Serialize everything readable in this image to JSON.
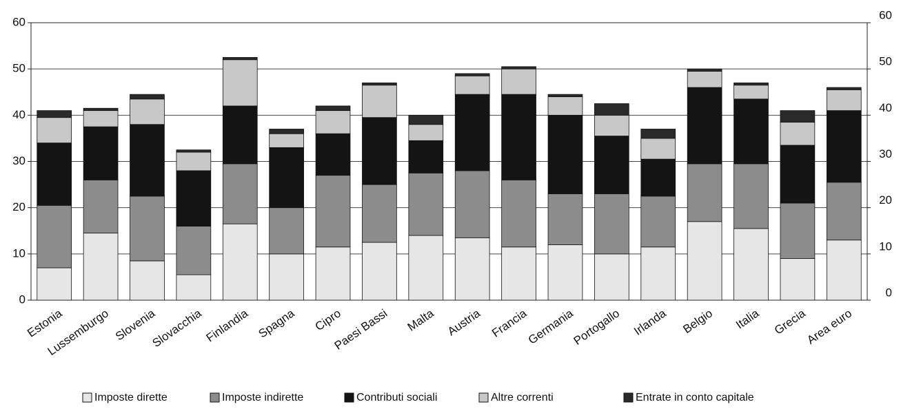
{
  "chart_data": {
    "type": "stacked-bar",
    "categories": [
      "Estonia",
      "Lussemburgo",
      "Slovenia",
      "Slovacchia",
      "Finlandia",
      "Spagna",
      "Cipro",
      "Paesi Bassi",
      "Malta",
      "Austria",
      "Francia",
      "Germania",
      "Portogallo",
      "Irlanda",
      "Belgio",
      "Italia",
      "Grecia",
      "Area euro"
    ],
    "series": [
      {
        "name": "Imposte dirette",
        "color": "#e6e6e6",
        "values": [
          7,
          14.5,
          8.5,
          5.5,
          16.5,
          10,
          11.5,
          12.5,
          14,
          13.5,
          11.5,
          12,
          10,
          11.5,
          17,
          15.5,
          9,
          13
        ]
      },
      {
        "name": "Imposte indirette",
        "color": "#8c8c8c",
        "values": [
          13.5,
          11.5,
          14,
          10.5,
          13,
          10,
          15.5,
          12.5,
          13.5,
          14.5,
          14.5,
          11,
          13,
          11,
          12.5,
          14,
          12,
          12.5
        ]
      },
      {
        "name": "Contributi sociali",
        "color": "#141414",
        "values": [
          13.5,
          11.5,
          15.5,
          12,
          12.5,
          13,
          9,
          14.5,
          7,
          16.5,
          18.5,
          17,
          12.5,
          8,
          16.5,
          14,
          12.5,
          15.5
        ]
      },
      {
        "name": "Altre correnti",
        "color": "#c8c8c8",
        "values": [
          5.5,
          3.5,
          5.5,
          4,
          10,
          3,
          5,
          7,
          3.5,
          4,
          5.5,
          4,
          4.5,
          4.5,
          3.5,
          3,
          5,
          4.5
        ]
      },
      {
        "name": "Entrate in conto capitale",
        "color": "#2a2a2a",
        "values": [
          1.5,
          0.5,
          1,
          0.5,
          0.5,
          1,
          1,
          0.5,
          2,
          0.5,
          0.5,
          0.5,
          2.5,
          2,
          0.5,
          0.5,
          2.5,
          0.5
        ]
      }
    ],
    "ylim": [
      0,
      60
    ],
    "yticks": [
      0,
      10,
      20,
      30,
      40,
      50,
      60
    ],
    "y2lim": [
      0,
      60
    ],
    "y2ticks": [
      0,
      10,
      20,
      30,
      40,
      50,
      60
    ],
    "grid": true,
    "legend": "bottom"
  }
}
